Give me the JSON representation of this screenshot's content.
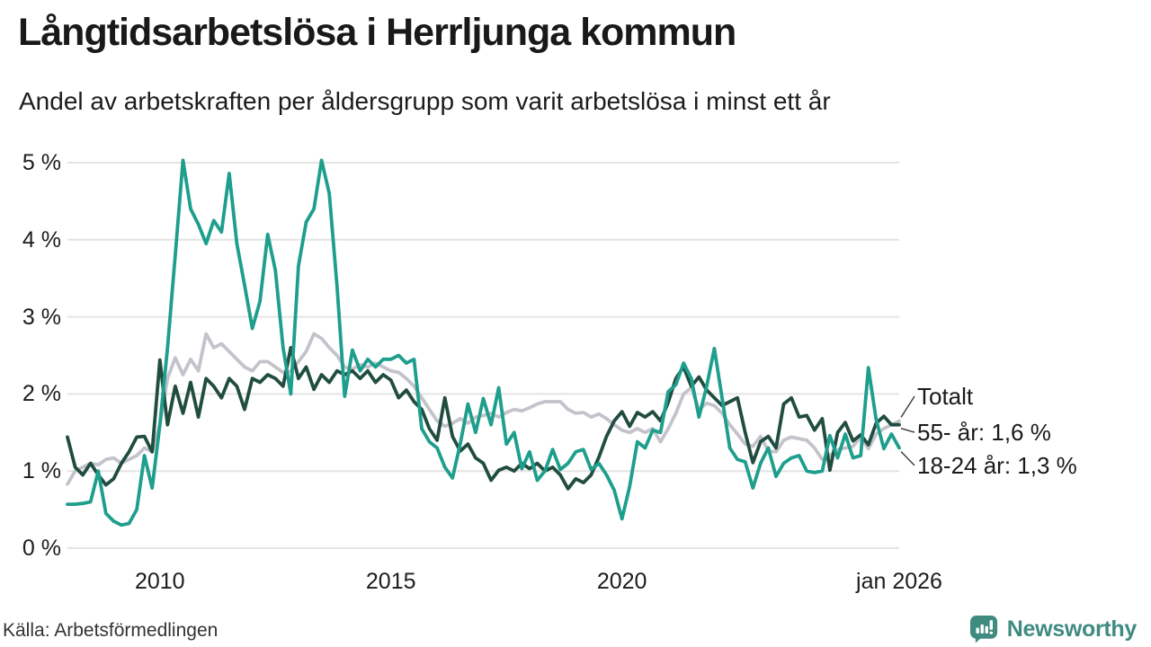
{
  "chart_data": {
    "type": "line",
    "title": "Långtidsarbetslösa i Herrljunga kommun",
    "subtitle": "Andel av arbetskraften per åldersgrupp som varit arbetslösa i minst ett år",
    "source": "Källa: Arbetsförmedlingen",
    "ylabel": "",
    "xlabel": "",
    "ylim": [
      0,
      5
    ],
    "xlim": [
      2008,
      2026.0
    ],
    "grid": "horizontal",
    "legend_position": "right-end-annotations",
    "x_start": 2008,
    "points_per_year": 6,
    "y_ticks": [
      {
        "v": 0,
        "label": "0 %"
      },
      {
        "v": 1,
        "label": "1 %"
      },
      {
        "v": 2,
        "label": "2 %"
      },
      {
        "v": 3,
        "label": "3 %"
      },
      {
        "v": 4,
        "label": "4 %"
      },
      {
        "v": 5,
        "label": "5 %"
      }
    ],
    "x_ticks": [
      {
        "t": 2010,
        "label": "2010"
      },
      {
        "t": 2015,
        "label": "2015"
      },
      {
        "t": 2020,
        "label": "2020"
      },
      {
        "t": 2026,
        "label": "jan 2026"
      }
    ],
    "series": [
      {
        "name": "Totalt",
        "annotation": "Totalt",
        "last_value": 1.65,
        "color": "#c4c3cb",
        "values": [
          0.83,
          1.0,
          1.05,
          1.1,
          1.08,
          1.15,
          1.17,
          1.1,
          1.15,
          1.2,
          1.3,
          1.25,
          1.6,
          2.2,
          2.47,
          2.25,
          2.45,
          2.3,
          2.78,
          2.6,
          2.65,
          2.55,
          2.45,
          2.35,
          2.3,
          2.42,
          2.42,
          2.35,
          2.28,
          2.3,
          2.42,
          2.55,
          2.78,
          2.72,
          2.6,
          2.5,
          2.35,
          2.32,
          2.38,
          2.35,
          2.4,
          2.35,
          2.3,
          2.28,
          2.2,
          2.1,
          1.95,
          1.8,
          1.65,
          1.58,
          1.62,
          1.68,
          1.62,
          1.7,
          1.72,
          1.75,
          1.7,
          1.76,
          1.8,
          1.78,
          1.82,
          1.87,
          1.9,
          1.9,
          1.9,
          1.8,
          1.75,
          1.76,
          1.7,
          1.74,
          1.68,
          1.6,
          1.53,
          1.5,
          1.55,
          1.5,
          1.55,
          1.38,
          1.55,
          1.75,
          2.0,
          2.08,
          1.8,
          1.88,
          1.85,
          1.75,
          1.6,
          1.48,
          1.35,
          1.32,
          1.45,
          1.26,
          1.25,
          1.4,
          1.44,
          1.42,
          1.4,
          1.3,
          1.15,
          1.2,
          1.28,
          1.3,
          1.32,
          1.44,
          1.29,
          1.48,
          1.55,
          1.6,
          1.65
        ]
      },
      {
        "name": "55- år",
        "annotation": "55- år: 1,6 %",
        "last_value": 1.6,
        "color": "#204d40",
        "values": [
          1.44,
          1.05,
          0.95,
          1.1,
          0.95,
          0.82,
          0.9,
          1.1,
          1.25,
          1.44,
          1.45,
          1.25,
          2.44,
          1.6,
          2.1,
          1.75,
          2.15,
          1.7,
          2.2,
          2.1,
          1.95,
          2.2,
          2.1,
          1.8,
          2.2,
          2.15,
          2.25,
          2.2,
          2.1,
          2.6,
          2.2,
          2.35,
          2.06,
          2.25,
          2.15,
          2.3,
          2.25,
          2.3,
          2.2,
          2.3,
          2.15,
          2.25,
          2.18,
          1.95,
          2.05,
          1.9,
          1.8,
          1.55,
          1.4,
          1.95,
          1.45,
          1.26,
          1.35,
          1.17,
          1.1,
          0.88,
          1.01,
          1.05,
          1.0,
          1.1,
          1.03,
          1.1,
          1.0,
          1.05,
          0.95,
          0.77,
          0.9,
          0.85,
          0.95,
          1.18,
          1.45,
          1.65,
          1.77,
          1.58,
          1.76,
          1.7,
          1.77,
          1.65,
          1.89,
          2.2,
          2.35,
          2.1,
          2.22,
          2.05,
          1.95,
          1.85,
          1.9,
          1.95,
          1.5,
          1.11,
          1.38,
          1.45,
          1.3,
          1.87,
          1.95,
          1.7,
          1.72,
          1.53,
          1.68,
          1.01,
          1.5,
          1.63,
          1.39,
          1.47,
          1.34,
          1.62,
          1.71,
          1.6,
          1.6
        ]
      },
      {
        "name": "18-24 år",
        "annotation": "18-24 år: 1,3 %",
        "last_value": 1.3,
        "color": "#1e9e8c",
        "values": [
          0.57,
          0.57,
          0.58,
          0.6,
          1.0,
          0.45,
          0.35,
          0.3,
          0.32,
          0.5,
          1.2,
          0.78,
          1.6,
          2.6,
          3.8,
          5.03,
          4.4,
          4.2,
          3.95,
          4.25,
          4.1,
          4.86,
          3.95,
          3.41,
          2.85,
          3.2,
          4.07,
          3.6,
          2.6,
          2.0,
          3.66,
          4.23,
          4.4,
          5.03,
          4.6,
          3.4,
          1.97,
          2.57,
          2.3,
          2.45,
          2.35,
          2.45,
          2.45,
          2.5,
          2.4,
          2.45,
          1.55,
          1.38,
          1.3,
          1.05,
          0.91,
          1.35,
          1.87,
          1.5,
          1.94,
          1.6,
          2.08,
          1.35,
          1.5,
          1.03,
          1.25,
          0.88,
          1.0,
          1.28,
          1.02,
          1.1,
          1.25,
          1.28,
          1.02,
          1.1,
          0.95,
          0.75,
          0.38,
          0.8,
          1.38,
          1.3,
          1.53,
          1.5,
          2.03,
          2.12,
          2.4,
          2.2,
          1.7,
          2.1,
          2.59,
          1.95,
          1.3,
          1.15,
          1.12,
          0.78,
          1.1,
          1.3,
          0.93,
          1.1,
          1.17,
          1.2,
          1.0,
          0.98,
          1.0,
          1.46,
          1.17,
          1.48,
          1.17,
          1.2,
          2.34,
          1.67,
          1.29,
          1.48,
          1.3
        ]
      }
    ],
    "colors": {
      "grid": "#e4e4e4",
      "text": "#1c1c1c",
      "leader": "#444444"
    }
  },
  "branding": {
    "logo_text": "Newsworthy",
    "color": "#3f8b80"
  }
}
